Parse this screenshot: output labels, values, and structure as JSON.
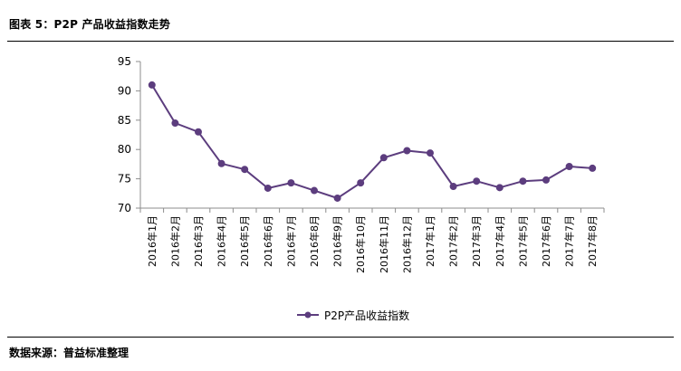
{
  "figure": {
    "title": "图表 5：P2P 产品收益指数走势",
    "source": "数据来源：普益标准整理"
  },
  "chart_data": {
    "type": "line",
    "categories": [
      "2016年1月",
      "2016年2月",
      "2016年3月",
      "2016年4月",
      "2016年5月",
      "2016年6月",
      "2016年7月",
      "2016年8月",
      "2016年9月",
      "2016年10月",
      "2016年11月",
      "2016年12月",
      "2017年1月",
      "2017年2月",
      "2017年3月",
      "2017年4月",
      "2017年5月",
      "2017年6月",
      "2017年7月",
      "2017年8月"
    ],
    "series": [
      {
        "name": "P2P产品收益指数",
        "values": [
          91.0,
          84.5,
          83.0,
          77.6,
          76.6,
          73.4,
          74.3,
          73.0,
          71.7,
          74.3,
          78.6,
          79.8,
          79.4,
          73.7,
          74.6,
          73.5,
          74.6,
          74.8,
          77.1,
          76.8
        ],
        "color": "#5c3d7e"
      }
    ],
    "ylim": [
      70,
      95
    ],
    "yticks": [
      70,
      75,
      80,
      85,
      90,
      95
    ],
    "grid": false,
    "legend": "bottom"
  }
}
